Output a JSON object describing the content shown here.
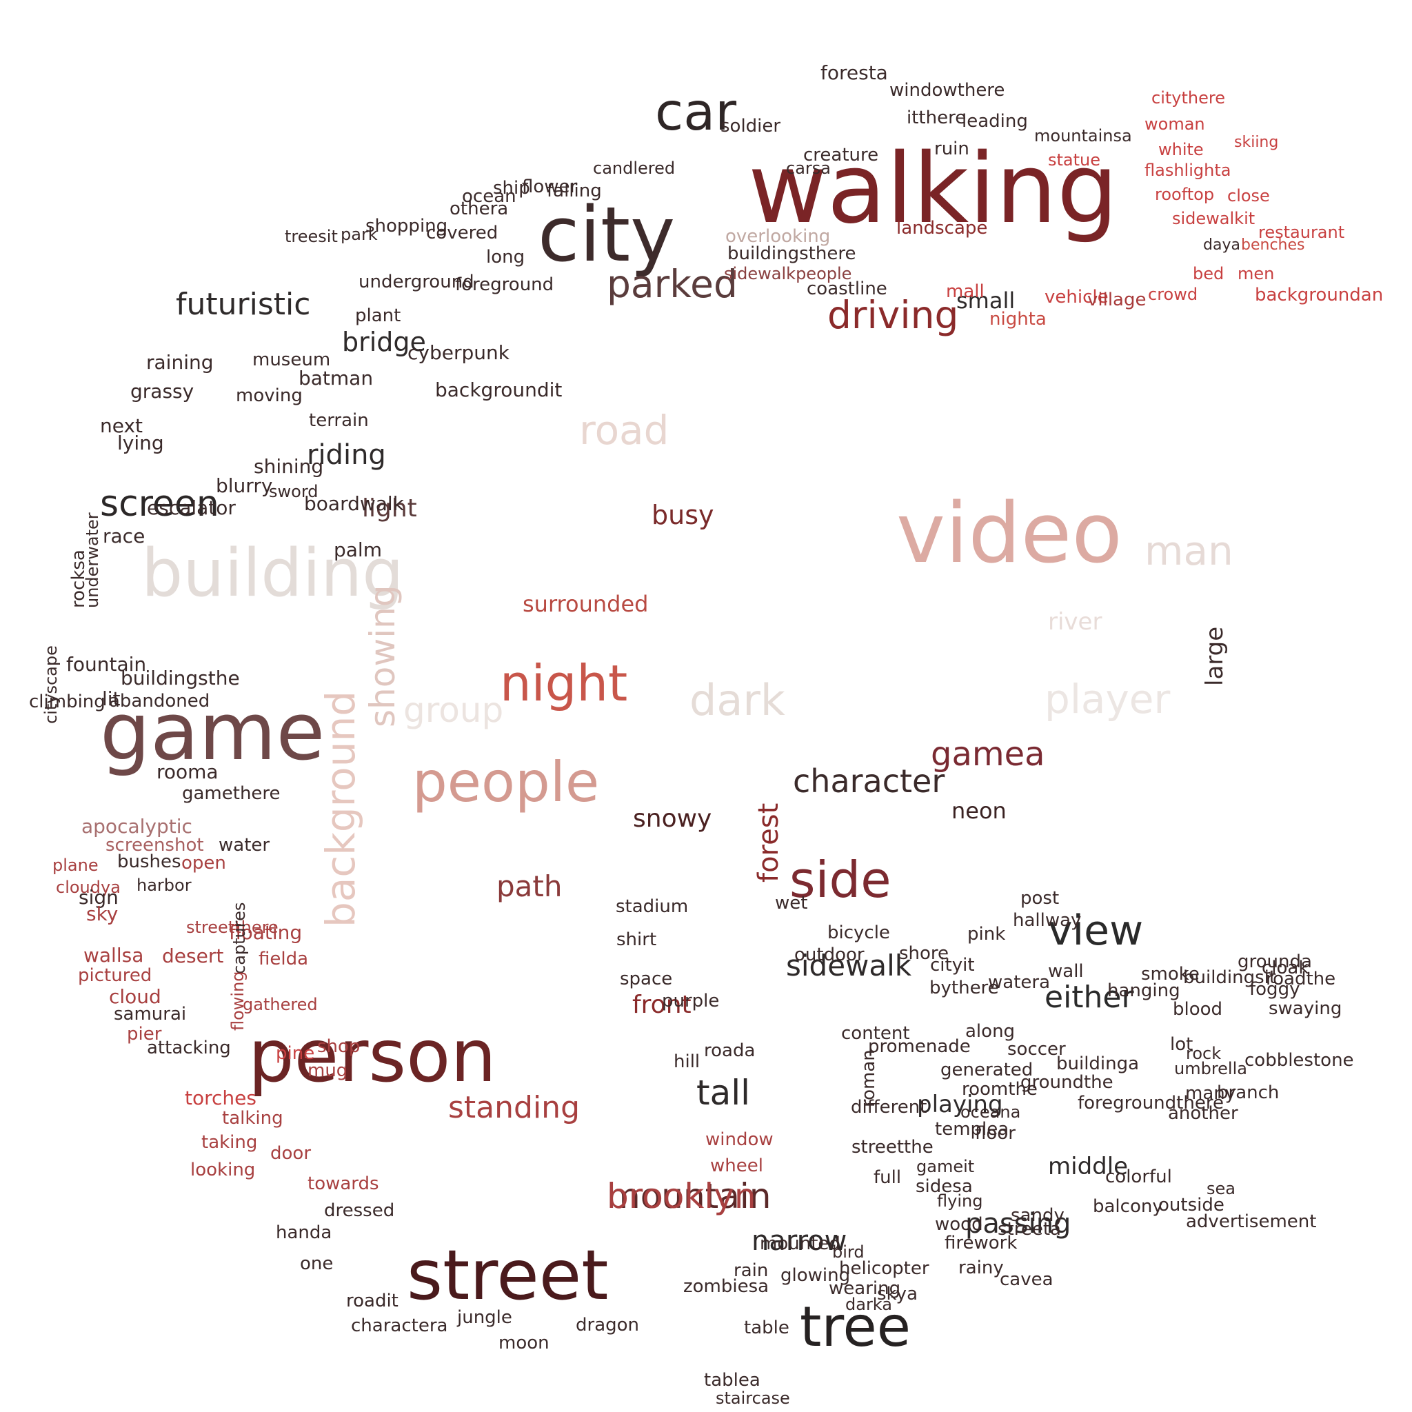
{
  "words": [
    {
      "t": "walking",
      "c": "#7a2426"
    },
    {
      "t": "city",
      "c": "#3d2b2b"
    },
    {
      "t": "video",
      "c": "#dcaaa2"
    },
    {
      "t": "game",
      "c": "#6e4848"
    },
    {
      "t": "person",
      "c": "#6b2424"
    },
    {
      "t": "street",
      "c": "#4a1a1c"
    },
    {
      "t": "people",
      "c": "#d49a90"
    },
    {
      "t": "building",
      "c": "#e3dcd8"
    },
    {
      "t": "night",
      "c": "#c8564a"
    },
    {
      "t": "car",
      "c": "#2e2626"
    },
    {
      "t": "tree",
      "c": "#262222"
    },
    {
      "t": "side",
      "c": "#7c2a30"
    },
    {
      "t": "view",
      "c": "#2a2a2a"
    },
    {
      "t": "dark",
      "c": "#e5dcd7"
    },
    {
      "t": "road",
      "c": "#e8d6d0"
    },
    {
      "t": "player",
      "c": "#ece6e3"
    },
    {
      "t": "man",
      "c": "#e6dad6"
    },
    {
      "t": "parked",
      "c": "#5a3c3c"
    },
    {
      "t": "driving",
      "c": "#8b2a2a"
    },
    {
      "t": "screen",
      "c": "#2b2727"
    },
    {
      "t": "background",
      "c": "#e6c7bf"
    },
    {
      "t": "showing",
      "c": "#e0c6bf"
    },
    {
      "t": "group",
      "c": "#ece4e0"
    },
    {
      "t": "mountain",
      "c": "#5a2828"
    },
    {
      "t": "gamea",
      "c": "#7a2a32"
    },
    {
      "t": "tall",
      "c": "#2e2a2a"
    },
    {
      "t": "character",
      "c": "#3a2a2a"
    },
    {
      "t": "standing",
      "c": "#a84040"
    },
    {
      "t": "path",
      "c": "#8a3a3a"
    },
    {
      "t": "sidewalk",
      "c": "#2e2a2a"
    },
    {
      "t": "either",
      "c": "#2a2a2a"
    },
    {
      "t": "narrow",
      "c": "#2e2a2a"
    },
    {
      "t": "passing",
      "c": "#2e2a2a"
    },
    {
      "t": "futuristic",
      "c": "#2e2a2a"
    },
    {
      "t": "riding",
      "c": "#2e2a2a"
    },
    {
      "t": "light",
      "c": "#5a3a3a"
    },
    {
      "t": "bridge",
      "c": "#2e2a2a"
    },
    {
      "t": "busy",
      "c": "#7a2a2a"
    },
    {
      "t": "snowy",
      "c": "#4a2020"
    },
    {
      "t": "front",
      "c": "#8a2a2a"
    },
    {
      "t": "surrounded",
      "c": "#b84a42"
    },
    {
      "t": "neon",
      "c": "#3a2222"
    },
    {
      "t": "forest",
      "c": "#8a2a2a"
    },
    {
      "t": "large",
      "c": "#3a2a2a"
    },
    {
      "t": "river",
      "c": "#e8dcd8"
    },
    {
      "t": "middle",
      "c": "#2e2a2a"
    },
    {
      "t": "playing",
      "c": "#2e2a2a"
    },
    {
      "t": "small",
      "c": "#2e2a2a"
    },
    {
      "t": "overlooking",
      "c": "#c0a8a2"
    },
    {
      "t": "sidewalkpeople",
      "c": "#8a4040"
    },
    {
      "t": "buildingsthere",
      "c": "#3a2a2a"
    },
    {
      "t": "landscape",
      "c": "#8a2a2a"
    },
    {
      "t": "coastline",
      "c": "#3a2a2a"
    },
    {
      "t": "mall",
      "c": "#c84040"
    },
    {
      "t": "nighta",
      "c": "#c84a42"
    },
    {
      "t": "vehicle",
      "c": "#c84040"
    },
    {
      "t": "village",
      "c": "#a83a3a"
    },
    {
      "t": "crowd",
      "c": "#c84040"
    },
    {
      "t": "men",
      "c": "#c84040"
    },
    {
      "t": "bed",
      "c": "#c84040"
    },
    {
      "t": "backgroundan",
      "c": "#c84040"
    },
    {
      "t": "restaurant",
      "c": "#c84040"
    },
    {
      "t": "daya",
      "c": "#3a2a2a"
    },
    {
      "t": "benches",
      "c": "#c84a42"
    },
    {
      "t": "sidewalkit",
      "c": "#c84040"
    },
    {
      "t": "rooftop",
      "c": "#c84040"
    },
    {
      "t": "close",
      "c": "#c84040"
    },
    {
      "t": "flashlighta",
      "c": "#c84040"
    },
    {
      "t": "white",
      "c": "#c84040"
    },
    {
      "t": "woman",
      "c": "#c84040"
    },
    {
      "t": "citythere",
      "c": "#c84040"
    },
    {
      "t": "statue",
      "c": "#c84040"
    },
    {
      "t": "skiing",
      "c": "#c84040"
    },
    {
      "t": "mountainsa",
      "c": "#3a2a2a"
    },
    {
      "t": "leading",
      "c": "#3a2a2a"
    },
    {
      "t": "ruin",
      "c": "#3a2a2a"
    },
    {
      "t": "itthere",
      "c": "#3a2a2a"
    },
    {
      "t": "windowthere",
      "c": "#3a2a2a"
    },
    {
      "t": "foresta",
      "c": "#3a2a2a"
    },
    {
      "t": "soldier",
      "c": "#3a2a2a"
    },
    {
      "t": "carsa",
      "c": "#3a2a2a"
    },
    {
      "t": "creature",
      "c": "#3a2a2a"
    },
    {
      "t": "candlered",
      "c": "#3a2a2a"
    },
    {
      "t": "ship",
      "c": "#3a2a2a"
    },
    {
      "t": "flower",
      "c": "#3a2a2a"
    },
    {
      "t": "falling",
      "c": "#3a2a2a"
    },
    {
      "t": "ocean",
      "c": "#3a2a2a"
    },
    {
      "t": "othera",
      "c": "#3a2a2a"
    },
    {
      "t": "covered",
      "c": "#3a2a2a"
    },
    {
      "t": "long",
      "c": "#3a2a2a"
    },
    {
      "t": "foreground",
      "c": "#3a2a2a"
    },
    {
      "t": "underground",
      "c": "#3a2a2a"
    },
    {
      "t": "plant",
      "c": "#3a2a2a"
    },
    {
      "t": "shopping",
      "c": "#3a2a2a"
    },
    {
      "t": "park",
      "c": "#3a2a2a"
    },
    {
      "t": "treesit",
      "c": "#3a2a2a"
    },
    {
      "t": "museum",
      "c": "#3a2a2a"
    },
    {
      "t": "raining",
      "c": "#3a2a2a"
    },
    {
      "t": "cyberpunk",
      "c": "#3a2a2a"
    },
    {
      "t": "batman",
      "c": "#3a2a2a"
    },
    {
      "t": "grassy",
      "c": "#3a2a2a"
    },
    {
      "t": "moving",
      "c": "#3a2a2a"
    },
    {
      "t": "backgroundit",
      "c": "#3a2a2a"
    },
    {
      "t": "next",
      "c": "#3a2a2a"
    },
    {
      "t": "lying",
      "c": "#3a2a2a"
    },
    {
      "t": "terrain",
      "c": "#3a2a2a"
    },
    {
      "t": "blurry",
      "c": "#3a2a2a"
    },
    {
      "t": "escalator",
      "c": "#3a2a2a"
    },
    {
      "t": "sword",
      "c": "#3a2a2a"
    },
    {
      "t": "shining",
      "c": "#3a2a2a"
    },
    {
      "t": "boardwalk",
      "c": "#3a2a2a"
    },
    {
      "t": "race",
      "c": "#3a2a2a"
    },
    {
      "t": "palm",
      "c": "#3a2a2a"
    },
    {
      "t": "underwater",
      "c": "#3a2a2a"
    },
    {
      "t": "rocksa",
      "c": "#3a2a2a"
    },
    {
      "t": "cityscape",
      "c": "#3a2a2a"
    },
    {
      "t": "fountain",
      "c": "#3a2a2a"
    },
    {
      "t": "buildingsthe",
      "c": "#3a2a2a"
    },
    {
      "t": "lit",
      "c": "#3a2a2a"
    },
    {
      "t": "climbing",
      "c": "#3a2a2a"
    },
    {
      "t": "abandoned",
      "c": "#3a2a2a"
    },
    {
      "t": "rooma",
      "c": "#3a2a2a"
    },
    {
      "t": "gamethere",
      "c": "#3a2a2a"
    },
    {
      "t": "apocalyptic",
      "c": "#a87070"
    },
    {
      "t": "screenshot",
      "c": "#a86060"
    },
    {
      "t": "water",
      "c": "#3a2a2a"
    },
    {
      "t": "bushes",
      "c": "#3a2a2a"
    },
    {
      "t": "open",
      "c": "#a84040"
    },
    {
      "t": "plane",
      "c": "#a84040"
    },
    {
      "t": "cloudya",
      "c": "#a84040"
    },
    {
      "t": "sign",
      "c": "#3a2a2a"
    },
    {
      "t": "harbor",
      "c": "#3a2a2a"
    },
    {
      "t": "sky",
      "c": "#a84040"
    },
    {
      "t": "streetthere",
      "c": "#a84040"
    },
    {
      "t": "floating",
      "c": "#a84040"
    },
    {
      "t": "wallsa",
      "c": "#a84040"
    },
    {
      "t": "desert",
      "c": "#a84040"
    },
    {
      "t": "fielda",
      "c": "#a84040"
    },
    {
      "t": "pictured",
      "c": "#a84040"
    },
    {
      "t": "cloud",
      "c": "#a84040"
    },
    {
      "t": "captures",
      "c": "#3a2a2a"
    },
    {
      "t": "samurai",
      "c": "#3a2a2a"
    },
    {
      "t": "pier",
      "c": "#a84040"
    },
    {
      "t": "flowing",
      "c": "#a84040"
    },
    {
      "t": "gathered",
      "c": "#a84040"
    },
    {
      "t": "attacking",
      "c": "#3a2a2a"
    },
    {
      "t": "pine",
      "c": "#c84040"
    },
    {
      "t": "mug",
      "c": "#a84040"
    },
    {
      "t": "shop",
      "c": "#a84040"
    },
    {
      "t": "torches",
      "c": "#c84040"
    },
    {
      "t": "talking",
      "c": "#a84040"
    },
    {
      "t": "taking",
      "c": "#a84040"
    },
    {
      "t": "door",
      "c": "#a84040"
    },
    {
      "t": "looking",
      "c": "#a84040"
    },
    {
      "t": "towards",
      "c": "#a84040"
    },
    {
      "t": "dressed",
      "c": "#3a2a2a"
    },
    {
      "t": "handa",
      "c": "#3a2a2a"
    },
    {
      "t": "one",
      "c": "#3a2a2a"
    },
    {
      "t": "roadit",
      "c": "#3a2a2a"
    },
    {
      "t": "charactera",
      "c": "#3a2a2a"
    },
    {
      "t": "jungle",
      "c": "#3a2a2a"
    },
    {
      "t": "moon",
      "c": "#3a2a2a"
    },
    {
      "t": "dragon",
      "c": "#3a2a2a"
    },
    {
      "t": "tablea",
      "c": "#3a2a2a"
    },
    {
      "t": "staircase",
      "c": "#3a2a2a"
    },
    {
      "t": "table",
      "c": "#3a2a2a"
    },
    {
      "t": "zombiesa",
      "c": "#3a2a2a"
    },
    {
      "t": "rain",
      "c": "#3a2a2a"
    },
    {
      "t": "glowing",
      "c": "#3a2a2a"
    },
    {
      "t": "mounted",
      "c": "#3a2a2a"
    },
    {
      "t": "wearing",
      "c": "#3a2a2a"
    },
    {
      "t": "helicopter",
      "c": "#3a2a2a"
    },
    {
      "t": "darka",
      "c": "#3a2a2a"
    },
    {
      "t": "skya",
      "c": "#3a2a2a"
    },
    {
      "t": "bird",
      "c": "#3a2a2a"
    },
    {
      "t": "wood",
      "c": "#3a2a2a"
    },
    {
      "t": "firework",
      "c": "#3a2a2a"
    },
    {
      "t": "rainy",
      "c": "#3a2a2a"
    },
    {
      "t": "cavea",
      "c": "#3a2a2a"
    },
    {
      "t": "streeta",
      "c": "#3a2a2a"
    },
    {
      "t": "full",
      "c": "#3a2a2a"
    },
    {
      "t": "sidesa",
      "c": "#3a2a2a"
    },
    {
      "t": "gameit",
      "c": "#3a2a2a"
    },
    {
      "t": "flying",
      "c": "#3a2a2a"
    },
    {
      "t": "sandy",
      "c": "#3a2a2a"
    },
    {
      "t": "balcony",
      "c": "#3a2a2a"
    },
    {
      "t": "outside",
      "c": "#3a2a2a"
    },
    {
      "t": "advertisement",
      "c": "#3a2a2a"
    },
    {
      "t": "sea",
      "c": "#3a2a2a"
    },
    {
      "t": "colorful",
      "c": "#3a2a2a"
    },
    {
      "t": "floor",
      "c": "#3a2a2a"
    },
    {
      "t": "oceana",
      "c": "#3a2a2a"
    },
    {
      "t": "roomthe",
      "c": "#3a2a2a"
    },
    {
      "t": "templea",
      "c": "#3a2a2a"
    },
    {
      "t": "roman",
      "c": "#3a2a2a"
    },
    {
      "t": "streetthe",
      "c": "#3a2a2a"
    },
    {
      "t": "different",
      "c": "#3a2a2a"
    },
    {
      "t": "generated",
      "c": "#3a2a2a"
    },
    {
      "t": "promenade",
      "c": "#3a2a2a"
    },
    {
      "t": "content",
      "c": "#3a2a2a"
    },
    {
      "t": "along",
      "c": "#3a2a2a"
    },
    {
      "t": "soccer",
      "c": "#3a2a2a"
    },
    {
      "t": "groundthe",
      "c": "#3a2a2a"
    },
    {
      "t": "foregroundthere",
      "c": "#3a2a2a"
    },
    {
      "t": "buildinga",
      "c": "#3a2a2a"
    },
    {
      "t": "another",
      "c": "#3a2a2a"
    },
    {
      "t": "many",
      "c": "#3a2a2a"
    },
    {
      "t": "umbrella",
      "c": "#3a2a2a"
    },
    {
      "t": "rock",
      "c": "#3a2a2a"
    },
    {
      "t": "cobblestone",
      "c": "#3a2a2a"
    },
    {
      "t": "branch",
      "c": "#3a2a2a"
    },
    {
      "t": "blood",
      "c": "#3a2a2a"
    },
    {
      "t": "lot",
      "c": "#3a2a2a"
    },
    {
      "t": "foggy",
      "c": "#3a2a2a"
    },
    {
      "t": "grounda",
      "c": "#3a2a2a"
    },
    {
      "t": "buildingsit",
      "c": "#3a2a2a"
    },
    {
      "t": "hanging",
      "c": "#3a2a2a"
    },
    {
      "t": "swaying",
      "c": "#3a2a2a"
    },
    {
      "t": "roadthe",
      "c": "#3a2a2a"
    },
    {
      "t": "cloak",
      "c": "#3a2a2a"
    },
    {
      "t": "smoke",
      "c": "#3a2a2a"
    },
    {
      "t": "watera",
      "c": "#3a2a2a"
    },
    {
      "t": "wall",
      "c": "#3a2a2a"
    },
    {
      "t": "hallway",
      "c": "#3a2a2a"
    },
    {
      "t": "cityit",
      "c": "#3a2a2a"
    },
    {
      "t": "bythere",
      "c": "#3a2a2a"
    },
    {
      "t": "pink",
      "c": "#3a2a2a"
    },
    {
      "t": "post",
      "c": "#3a2a2a"
    },
    {
      "t": "shore",
      "c": "#3a2a2a"
    },
    {
      "t": "bicycle",
      "c": "#3a2a2a"
    },
    {
      "t": "outdoor",
      "c": "#3a2a2a"
    },
    {
      "t": "wet",
      "c": "#3a2a2a"
    },
    {
      "t": "shirt",
      "c": "#3a2a2a"
    },
    {
      "t": "stadium",
      "c": "#3a2a2a"
    },
    {
      "t": "space",
      "c": "#3a2a2a"
    },
    {
      "t": "purple",
      "c": "#3a2a2a"
    },
    {
      "t": "hill",
      "c": "#3a2a2a"
    },
    {
      "t": "roada",
      "c": "#3a2a2a"
    },
    {
      "t": "window",
      "c": "#a84040"
    },
    {
      "t": "wheel",
      "c": "#a84040"
    },
    {
      "t": "brooklyn",
      "c": "#a84040"
    },
    {
      "t": "room",
      "c": "#a84040"
    },
    {
      "t": "creepy",
      "c": "#a84040"
    },
    {
      "t": "treespeople",
      "c": "#a84040"
    },
    {
      "t": "torch",
      "c": "#3a2a2a"
    },
    {
      "t": "mountain",
      "c": "#5a2828"
    }
  ]
}
